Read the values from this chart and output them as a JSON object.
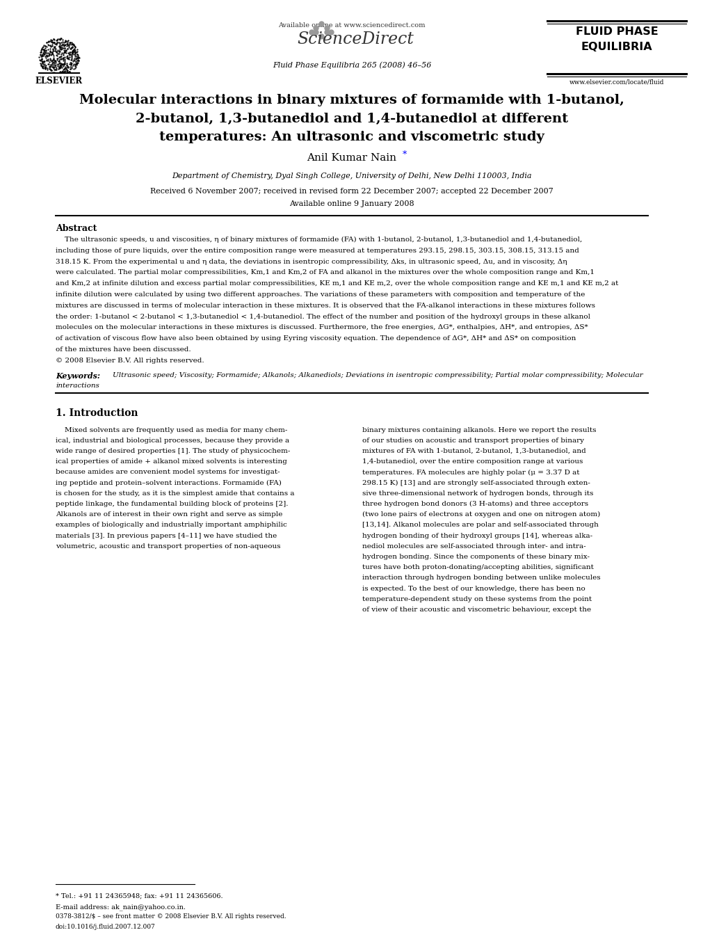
{
  "bg_color": "#ffffff",
  "page_width": 9.92,
  "page_height": 13.23,
  "header_url": "Available online at www.sciencedirect.com",
  "journal_info": "Fluid Phase Equilibria 265 (2008) 46–56",
  "sciencedirect_text": "ScienceDirect",
  "fluid_phase_line1": "FLUID PHASE",
  "fluid_phase_line2": "EQUILIBRIA",
  "elsevier_text": "ELSEVIER",
  "website": "www.elsevier.com/locate/fluid",
  "title_line1": "Molecular interactions in binary mixtures of formamide with 1-butanol,",
  "title_line2": "2-butanol, 1,3-butanediol and 1,4-butanediol at different",
  "title_line3": "temperatures: An ultrasonic and viscometric study",
  "author": "Anil Kumar Nain",
  "affiliation": "Department of Chemistry, Dyal Singh College, University of Delhi, New Delhi 110003, India",
  "received": "Received 6 November 2007; received in revised form 22 December 2007; accepted 22 December 2007",
  "available": "Available online 9 January 2008",
  "abstract_heading": "Abstract",
  "abstract_text": "    The ultrasonic speeds, u and viscosities, η of binary mixtures of formamide (FA) with 1-butanol, 2-butanol, 1,3-butanediol and 1,4-butanediol,\nincluding those of pure liquids, over the entire composition range were measured at temperatures 293.15, 298.15, 303.15, 308.15, 313.15 and\n318.15 K. From the experimental u and η data, the deviations in isentropic compressibility, Δks, in ultrasonic speed, Δu, and in viscosity, Δη\nwere calculated. The partial molar compressibilities, Km,1 and Km,2 of FA and alkanol in the mixtures over the whole composition range and Km,1\nand Km,2 at infinite dilution and excess partial molar compressibilities, KE m,1 and KE m,2, over the whole composition range and KE m,1 and KE m,2 at\ninfinite dilution were calculated by using two different approaches. The variations of these parameters with composition and temperature of the\nmixtures are discussed in terms of molecular interaction in these mixtures. It is observed that the FA-alkanol interactions in these mixtures follows\nthe order: 1-butanol < 2-butanol < 1,3-butanediol < 1,4-butanediol. The effect of the number and position of the hydroxyl groups in these alkanol\nmolecules on the molecular interactions in these mixtures is discussed. Furthermore, the free energies, ΔG*, enthalpies, ΔH*, and entropies, ΔS*\nof activation of viscous flow have also been obtained by using Eyring viscosity equation. The dependence of ΔG*, ΔH* and ΔS* on composition\nof the mixtures have been discussed.\n© 2008 Elsevier B.V. All rights reserved.",
  "keywords_label": "Keywords:",
  "keywords_text": "Ultrasonic speed; Viscosity; Formamide; Alkanols; Alkanediols; Deviations in isentropic compressibility; Partial molar compressibility; Molecular\ninteractions",
  "section1_heading": "1. Introduction",
  "intro_col1": "    Mixed solvents are frequently used as media for many chem-\nical, industrial and biological processes, because they provide a\nwide range of desired properties [1]. The study of physicochem-\nical properties of amide + alkanol mixed solvents is interesting\nbecause amides are convenient model systems for investigat-\ning peptide and protein–solvent interactions. Formamide (FA)\nis chosen for the study, as it is the simplest amide that contains a\npeptide linkage, the fundamental building block of proteins [2].\nAlkanols are of interest in their own right and serve as simple\nexamples of biologically and industrially important amphiphilic\nmaterials [3]. In previous papers [4–11] we have studied the\nvolumetric, acoustic and transport properties of non-aqueous",
  "intro_col2": "binary mixtures containing alkanols. Here we report the results\nof our studies on acoustic and transport properties of binary\nmixtures of FA with 1-butanol, 2-butanol, 1,3-butanediol, and\n1,4-butanediol, over the entire composition range at various\ntemperatures. FA molecules are highly polar (μ = 3.37 D at\n298.15 K) [13] and are strongly self-associated through exten-\nsive three-dimensional network of hydrogen bonds, through its\nthree hydrogen bond donors (3 H-atoms) and three acceptors\n(two lone pairs of electrons at oxygen and one on nitrogen atom)\n[13,14]. Alkanol molecules are polar and self-associated through\nhydrogen bonding of their hydroxyl groups [14], whereas alka-\nnediol molecules are self-associated through inter- and intra-\nhydrogen bonding. Since the components of these binary mix-\ntures have both proton-donating/accepting abilities, significant\ninteraction through hydrogen bonding between unlike molecules\nis expected. To the best of our knowledge, there has been no\ntemperature-dependent study on these systems from the point\nof view of their acoustic and viscometric behaviour, except the",
  "footnote_tel": "* Tel.: +91 11 24365948; fax: +91 11 24365606.",
  "footnote_email": "E-mail address: ak_nain@yahoo.co.in.",
  "footer_issn": "0378-3812/$ – see front matter © 2008 Elsevier B.V. All rights reserved.",
  "footer_doi": "doi:10.1016/j.fluid.2007.12.007"
}
